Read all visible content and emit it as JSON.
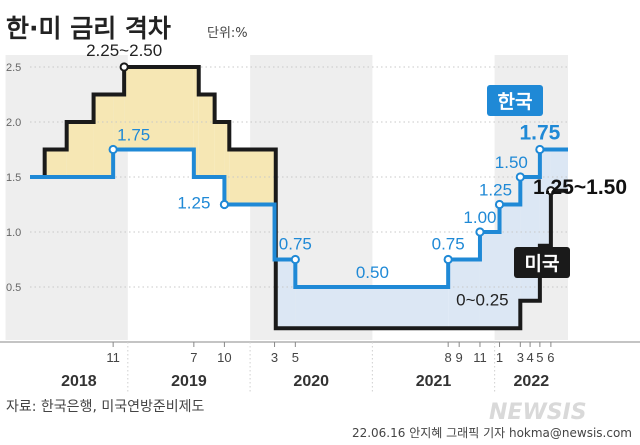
{
  "title": "한·미 금리 격차",
  "unit": "단위:%",
  "source": "자료: 한국은행, 미국연방준비제도",
  "credit": "22.06.16 안지혜 그래픽 기자 hokma@newsis.com",
  "logo": "NEWSIS",
  "colors": {
    "korea": "#1f89d6",
    "us": "#1a1a1a",
    "fill_us_above": "#f6e7b4",
    "fill_korea_above": "#dce7f4",
    "grid_band": "#eeeeee",
    "korea_badge": "#1f89d6",
    "us_badge": "#1a1a1a"
  },
  "chart_data": {
    "type": "step-line",
    "ylim": [
      0,
      2.75
    ],
    "xlim": [
      2018.2,
      2022.6
    ],
    "y_ticks": [
      0.5,
      1.0,
      1.5,
      2.0,
      2.5
    ],
    "y_tick_labels": [
      "0.5",
      "1.0",
      "1.5",
      "2.0",
      "2.5"
    ],
    "years": [
      {
        "label": "2018",
        "start": 2018.0,
        "end": 2019.0
      },
      {
        "label": "2019",
        "start": 2019.0,
        "end": 2020.0
      },
      {
        "label": "2020",
        "start": 2020.0,
        "end": 2021.0
      },
      {
        "label": "2021",
        "start": 2021.0,
        "end": 2022.0
      },
      {
        "label": "2022",
        "start": 2022.0,
        "end": 2022.6
      }
    ],
    "month_ticks": [
      {
        "label": "11",
        "x": 2018.88
      },
      {
        "label": "7",
        "x": 2019.54
      },
      {
        "label": "10",
        "x": 2019.79
      },
      {
        "label": "3",
        "x": 2020.2
      },
      {
        "label": "5",
        "x": 2020.37
      },
      {
        "label": "8",
        "x": 2021.62
      },
      {
        "label": "9",
        "x": 2021.71
      },
      {
        "label": "11",
        "x": 2021.88
      },
      {
        "label": "1",
        "x": 2022.04
      },
      {
        "label": "3",
        "x": 2022.21
      },
      {
        "label": "4",
        "x": 2022.29
      },
      {
        "label": "5",
        "x": 2022.37
      },
      {
        "label": "6",
        "x": 2022.46
      }
    ],
    "series": [
      {
        "name": "한국",
        "color": "#1f89d6",
        "points": [
          [
            2018.2,
            1.5
          ],
          [
            2018.88,
            1.75
          ],
          [
            2019.54,
            1.5
          ],
          [
            2019.79,
            1.25
          ],
          [
            2020.2,
            0.75
          ],
          [
            2020.37,
            0.5
          ],
          [
            2021.62,
            0.75
          ],
          [
            2021.88,
            1.0
          ],
          [
            2022.04,
            1.25
          ],
          [
            2022.21,
            1.5
          ],
          [
            2022.37,
            1.75
          ],
          [
            2022.6,
            1.75
          ]
        ],
        "labels": [
          {
            "text": "1.75",
            "x": 2018.88,
            "y": 1.75,
            "dx": 4,
            "dy": -9,
            "anchor": "start"
          },
          {
            "text": "1.25",
            "x": 2019.79,
            "y": 1.25,
            "dx": -14,
            "dy": 4,
            "anchor": "end"
          },
          {
            "text": "0.75",
            "x": 2020.37,
            "y": 0.75,
            "dx": 0,
            "dy": -10,
            "anchor": "middle"
          },
          {
            "text": "0.50",
            "x": 2021.0,
            "y": 0.5,
            "dx": 0,
            "dy": -9,
            "anchor": "middle"
          },
          {
            "text": "0.75",
            "x": 2021.62,
            "y": 0.75,
            "dx": 0,
            "dy": -10,
            "anchor": "middle"
          },
          {
            "text": "1.00",
            "x": 2021.88,
            "y": 1.0,
            "dx": 0,
            "dy": -9,
            "anchor": "middle"
          },
          {
            "text": "1.25",
            "x": 2022.04,
            "y": 1.25,
            "dx": -4,
            "dy": -9,
            "anchor": "middle"
          },
          {
            "text": "1.50",
            "x": 2022.21,
            "y": 1.5,
            "dx": -9,
            "dy": -9,
            "anchor": "middle"
          }
        ],
        "markers": [
          [
            2018.88,
            1.75
          ],
          [
            2019.79,
            1.25
          ],
          [
            2020.37,
            0.75
          ],
          [
            2021.62,
            0.75
          ],
          [
            2021.88,
            1.0
          ],
          [
            2022.04,
            1.25
          ],
          [
            2022.21,
            1.5
          ],
          [
            2022.37,
            1.75
          ]
        ],
        "final_label": "1.75",
        "final_point": [
          2022.37,
          1.75
        ],
        "badge": "한국"
      },
      {
        "name": "미국",
        "color": "#1a1a1a",
        "points": [
          [
            2018.2,
            1.5
          ],
          [
            2018.32,
            1.75
          ],
          [
            2018.5,
            2.0
          ],
          [
            2018.72,
            2.25
          ],
          [
            2018.97,
            2.5
          ],
          [
            2019.58,
            2.25
          ],
          [
            2019.71,
            2.0
          ],
          [
            2019.83,
            1.75
          ],
          [
            2020.21,
            0.125
          ],
          [
            2022.21,
            0.375
          ],
          [
            2022.37,
            0.875
          ],
          [
            2022.46,
            1.375
          ],
          [
            2022.6,
            1.375
          ]
        ],
        "labels": [
          {
            "text": "2.25~2.50",
            "x": 2018.97,
            "y": 2.5,
            "dx": 0,
            "dy": -11,
            "anchor": "middle"
          },
          {
            "text": "0~0.25",
            "x": 2021.9,
            "y": 0.25,
            "dx": 0,
            "dy": -9,
            "anchor": "middle"
          }
        ],
        "markers": [
          [
            2018.97,
            2.5
          ]
        ],
        "final_label": "1.25~1.50",
        "final_point": [
          2022.46,
          1.375
        ],
        "badge": "미국"
      }
    ]
  }
}
